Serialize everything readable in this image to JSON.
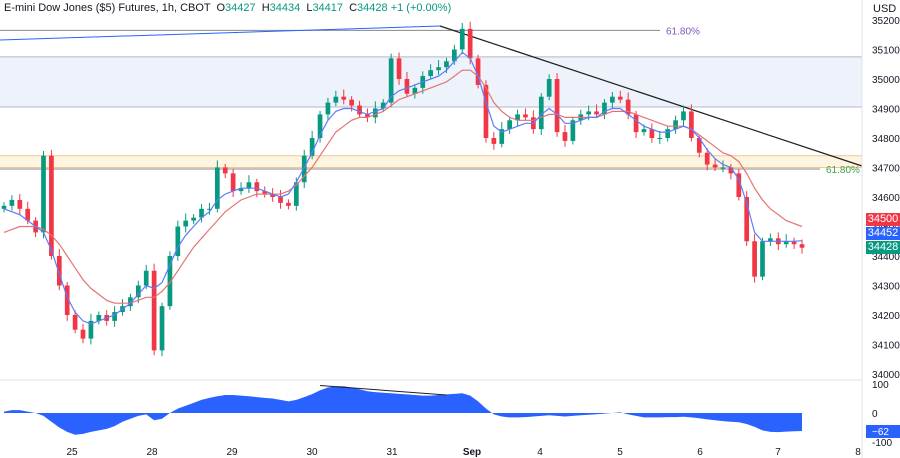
{
  "header": {
    "title": "E-mini Dow Jones ($5) Futures, 1h, CBOT",
    "open_label": "O",
    "open": "34427",
    "high_label": "H",
    "high": "34434",
    "low_label": "L",
    "low": "34417",
    "close_label": "C",
    "close": "34428",
    "change": "+1 (+0.00%)"
  },
  "currency": "USD",
  "chart_data": {
    "type": "candlestick",
    "y_ticks": [
      34000,
      34100,
      34200,
      34300,
      34400,
      34500,
      34600,
      34700,
      34800,
      34900,
      35000,
      35100,
      35200
    ],
    "x_labels": [
      "25",
      "28",
      "29",
      "30",
      "31",
      "Sep",
      "4",
      "5",
      "6",
      "7",
      "8"
    ],
    "ylim": [
      34000,
      35200
    ],
    "zones": [
      {
        "from": 34905,
        "to": 35075,
        "color": "#eef2fb"
      },
      {
        "from": 34700,
        "to": 34740,
        "color": "#fdf4e1"
      }
    ],
    "fib_levels": [
      {
        "label": "61.80%",
        "price": 35165,
        "color": "#7e57c2"
      },
      {
        "label": "61.80%",
        "price": 34695,
        "color": "#43a047"
      }
    ],
    "trendlines": [
      {
        "from": [
          "Aug 31 20:00",
          35170
        ],
        "to": [
          "Sep 8",
          34700
        ],
        "color": "#202020"
      }
    ],
    "price_tags": [
      {
        "value": "34500",
        "color": "#f23645"
      },
      {
        "value": "34452",
        "color": "#2962ff"
      },
      {
        "value": "34428",
        "color": "#089981"
      }
    ],
    "price_series": [
      34570,
      34590,
      34560,
      34520,
      34480,
      34740,
      34400,
      34300,
      34200,
      34150,
      34120,
      34180,
      34200,
      34180,
      34210,
      34230,
      34260,
      34300,
      34350,
      34080,
      34230,
      34400,
      34500,
      34520,
      34530,
      34560,
      34560,
      34700,
      34680,
      34620,
      34630,
      34650,
      34620,
      34610,
      34600,
      34580,
      34570,
      34650,
      34740,
      34800,
      34880,
      34920,
      34940,
      34930,
      34910,
      34880,
      34870,
      34900,
      34920,
      35070,
      35000,
      34950,
      34970,
      35010,
      35030,
      35040,
      35060,
      35100,
      35170,
      35070,
      34980,
      34800,
      34780,
      34830,
      34860,
      34880,
      34870,
      34830,
      34940,
      35000,
      34820,
      34790,
      34860,
      34880,
      34890,
      34880,
      34920,
      34940,
      34930,
      34880,
      34820,
      34830,
      34800,
      34800,
      34830,
      34860,
      34890,
      34800,
      34750,
      34710,
      34700,
      34700,
      34680,
      34600,
      34450,
      34330,
      34450,
      34460,
      34440,
      34450,
      34440,
      34428
    ],
    "ma_fast": [
      34560,
      34550,
      34540,
      34520,
      34500,
      34480,
      34420,
      34340,
      34260,
      34210,
      34180,
      34170,
      34180,
      34190,
      34200,
      34220,
      34240,
      34270,
      34300,
      34290,
      34310,
      34370,
      34430,
      34470,
      34500,
      34530,
      34550,
      34590,
      34610,
      34620,
      34630,
      34630,
      34630,
      34620,
      34610,
      34600,
      34610,
      34650,
      34700,
      34750,
      34810,
      34860,
      34890,
      34900,
      34900,
      34890,
      34880,
      34890,
      34900,
      34940,
      34960,
      34970,
      34980,
      34990,
      35000,
      35010,
      35030,
      35060,
      35090,
      35070,
      35010,
      34920,
      34840,
      34820,
      34830,
      34840,
      34850,
      34850,
      34880,
      34900,
      34880,
      34850,
      34850,
      34860,
      34870,
      34870,
      34890,
      34900,
      34900,
      34880,
      34860,
      34840,
      34830,
      34820,
      34820,
      34830,
      34840,
      34830,
      34800,
      34760,
      34730,
      34710,
      34700,
      34660,
      34580,
      34480,
      34450,
      34450,
      34450,
      34450,
      34450,
      34452
    ],
    "ma_slow": [
      34480,
      34490,
      34500,
      34500,
      34500,
      34490,
      34470,
      34440,
      34400,
      34360,
      34320,
      34290,
      34270,
      34250,
      34240,
      34240,
      34240,
      34250,
      34260,
      34260,
      34280,
      34310,
      34350,
      34390,
      34430,
      34460,
      34490,
      34520,
      34550,
      34570,
      34590,
      34600,
      34610,
      34610,
      34610,
      34610,
      34620,
      34640,
      34670,
      34700,
      34740,
      34780,
      34820,
      34840,
      34860,
      34870,
      34870,
      34880,
      34890,
      34910,
      34930,
      34940,
      34950,
      34960,
      34970,
      34980,
      34990,
      35010,
      35030,
      35030,
      35010,
      34970,
      34920,
      34890,
      34870,
      34860,
      34860,
      34860,
      34870,
      34880,
      34880,
      34870,
      34870,
      34870,
      34870,
      34870,
      34880,
      34890,
      34890,
      34890,
      34880,
      34870,
      34860,
      34850,
      34840,
      34840,
      34840,
      34830,
      34810,
      34790,
      34770,
      34750,
      34740,
      34720,
      34680,
      34630,
      34590,
      34560,
      34540,
      34520,
      34510,
      34500
    ],
    "oscillator": {
      "y_ticks": [
        100,
        0,
        -100
      ],
      "last_value": "−62",
      "color": "#2962ff",
      "values": [
        5,
        10,
        10,
        5,
        0,
        -10,
        -30,
        -50,
        -65,
        -75,
        -72,
        -65,
        -60,
        -55,
        -45,
        -30,
        -20,
        -10,
        -5,
        -25,
        -20,
        0,
        15,
        25,
        35,
        45,
        52,
        58,
        62,
        62,
        60,
        58,
        55,
        52,
        50,
        45,
        40,
        45,
        55,
        65,
        78,
        88,
        92,
        92,
        88,
        82,
        75,
        72,
        70,
        68,
        66,
        64,
        62,
        60,
        60,
        62,
        64,
        66,
        68,
        60,
        40,
        15,
        -5,
        -12,
        -15,
        -15,
        -14,
        -12,
        -10,
        -8,
        -10,
        -12,
        -10,
        -8,
        -6,
        -4,
        -2,
        0,
        2,
        -5,
        -10,
        -15,
        -15,
        -15,
        -14,
        -14,
        -13,
        -15,
        -18,
        -22,
        -25,
        -28,
        -30,
        -32,
        -38,
        -48,
        -60,
        -65,
        -66,
        -64,
        -63,
        -62
      ],
      "divergence_line": [
        [
          40,
          95
        ],
        [
          56,
          62
        ]
      ]
    }
  }
}
